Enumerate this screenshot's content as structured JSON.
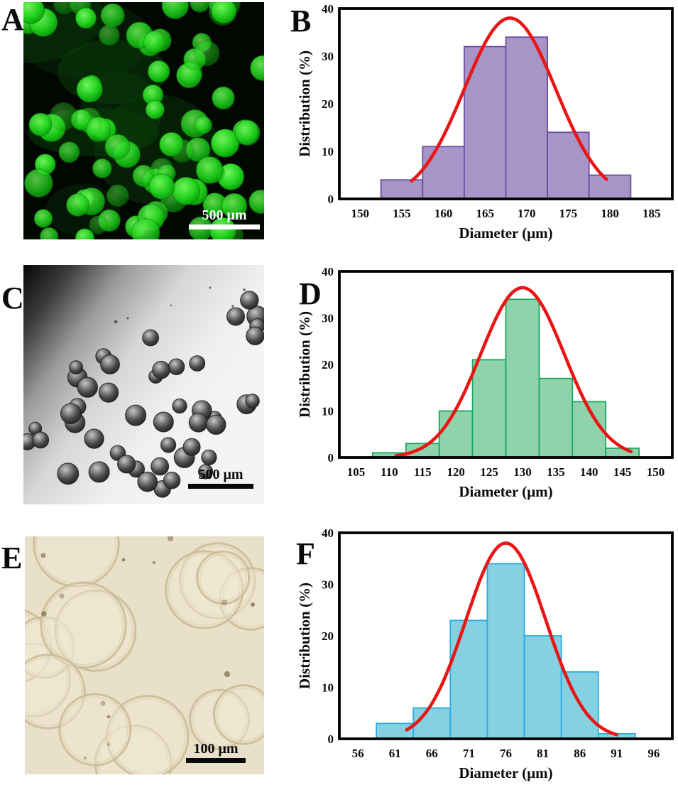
{
  "figure": {
    "background": "#ffffff",
    "panels": {
      "A": {
        "letter": "A",
        "scale_bar_label": "500 μm",
        "description": "Fluorescence micrograph of bright green spherical microparticles on a black background"
      },
      "C": {
        "letter": "C",
        "scale_bar_label": "500 μm",
        "description": "Brightfield micrograph of dark spherical microparticles scattered on a gray gradient field"
      },
      "E": {
        "letter": "E",
        "scale_bar_label": "100 μm",
        "description": "Optical micrograph of translucent hollow microcapsule outlines on a cream background"
      }
    }
  },
  "chart_data": [
    {
      "panel": "B",
      "type": "bar",
      "subtype": "histogram_with_gaussian_fit",
      "title": "",
      "xlabel": "Diameter (μm)",
      "ylabel": "Distribution (%)",
      "categories": [
        155,
        160,
        165,
        170,
        175,
        180
      ],
      "values": [
        4,
        11,
        32,
        34,
        14,
        5
      ],
      "bin_width": 5,
      "xticks": [
        150,
        155,
        160,
        165,
        170,
        175,
        180,
        185
      ],
      "yticks": [
        0,
        10,
        20,
        30,
        40
      ],
      "xlim": [
        147.5,
        187.5
      ],
      "ylim": [
        0,
        40
      ],
      "grid": false,
      "legend": false,
      "bar_fill": "#a695c6",
      "bar_border": "#6b4fa1",
      "curve": {
        "shape": "gaussian",
        "color": "#ea1515",
        "mean": 168,
        "peak": 38,
        "sigma": 5.5,
        "x_start": 156.2,
        "x_end": 179.6
      }
    },
    {
      "panel": "D",
      "type": "bar",
      "subtype": "histogram_with_gaussian_fit",
      "title": "",
      "xlabel": "Diameter (μm)",
      "ylabel": "Distribution (%)",
      "categories": [
        110,
        115,
        120,
        125,
        130,
        135,
        140,
        145
      ],
      "values": [
        1,
        3,
        10,
        21,
        34,
        17,
        12,
        2
      ],
      "bin_width": 5,
      "xticks": [
        105,
        110,
        115,
        120,
        125,
        130,
        135,
        140,
        145,
        150
      ],
      "yticks": [
        0,
        10,
        20,
        30,
        40
      ],
      "xlim": [
        102.5,
        152.5
      ],
      "ylim": [
        0,
        40
      ],
      "grid": false,
      "legend": false,
      "bar_fill": "#8fd3ad",
      "bar_border": "#17a95d",
      "curve": {
        "shape": "gaussian",
        "color": "#ea1515",
        "mean": 130,
        "peak": 36.5,
        "sigma": 6.3,
        "x_start": 111,
        "x_end": 146.3
      }
    },
    {
      "panel": "F",
      "type": "bar",
      "subtype": "histogram_with_gaussian_fit",
      "title": "",
      "xlabel": "Diameter (μm)",
      "ylabel": "Distribution (%)",
      "categories": [
        61,
        66,
        71,
        76,
        81,
        86,
        91
      ],
      "values": [
        3,
        6,
        23,
        34,
        20,
        13,
        1
      ],
      "bin_width": 5,
      "xticks": [
        56,
        61,
        66,
        71,
        76,
        81,
        86,
        91,
        96
      ],
      "yticks": [
        0,
        10,
        20,
        30,
        40
      ],
      "xlim": [
        53.5,
        98.5
      ],
      "ylim": [
        0,
        40
      ],
      "grid": false,
      "legend": false,
      "bar_fill": "#84d1e2",
      "bar_border": "#2aabe2",
      "curve": {
        "shape": "gaussian",
        "color": "#ea1515",
        "mean": 76,
        "peak": 38,
        "sigma": 5.4,
        "x_start": 62.6,
        "x_end": 91
      }
    }
  ]
}
